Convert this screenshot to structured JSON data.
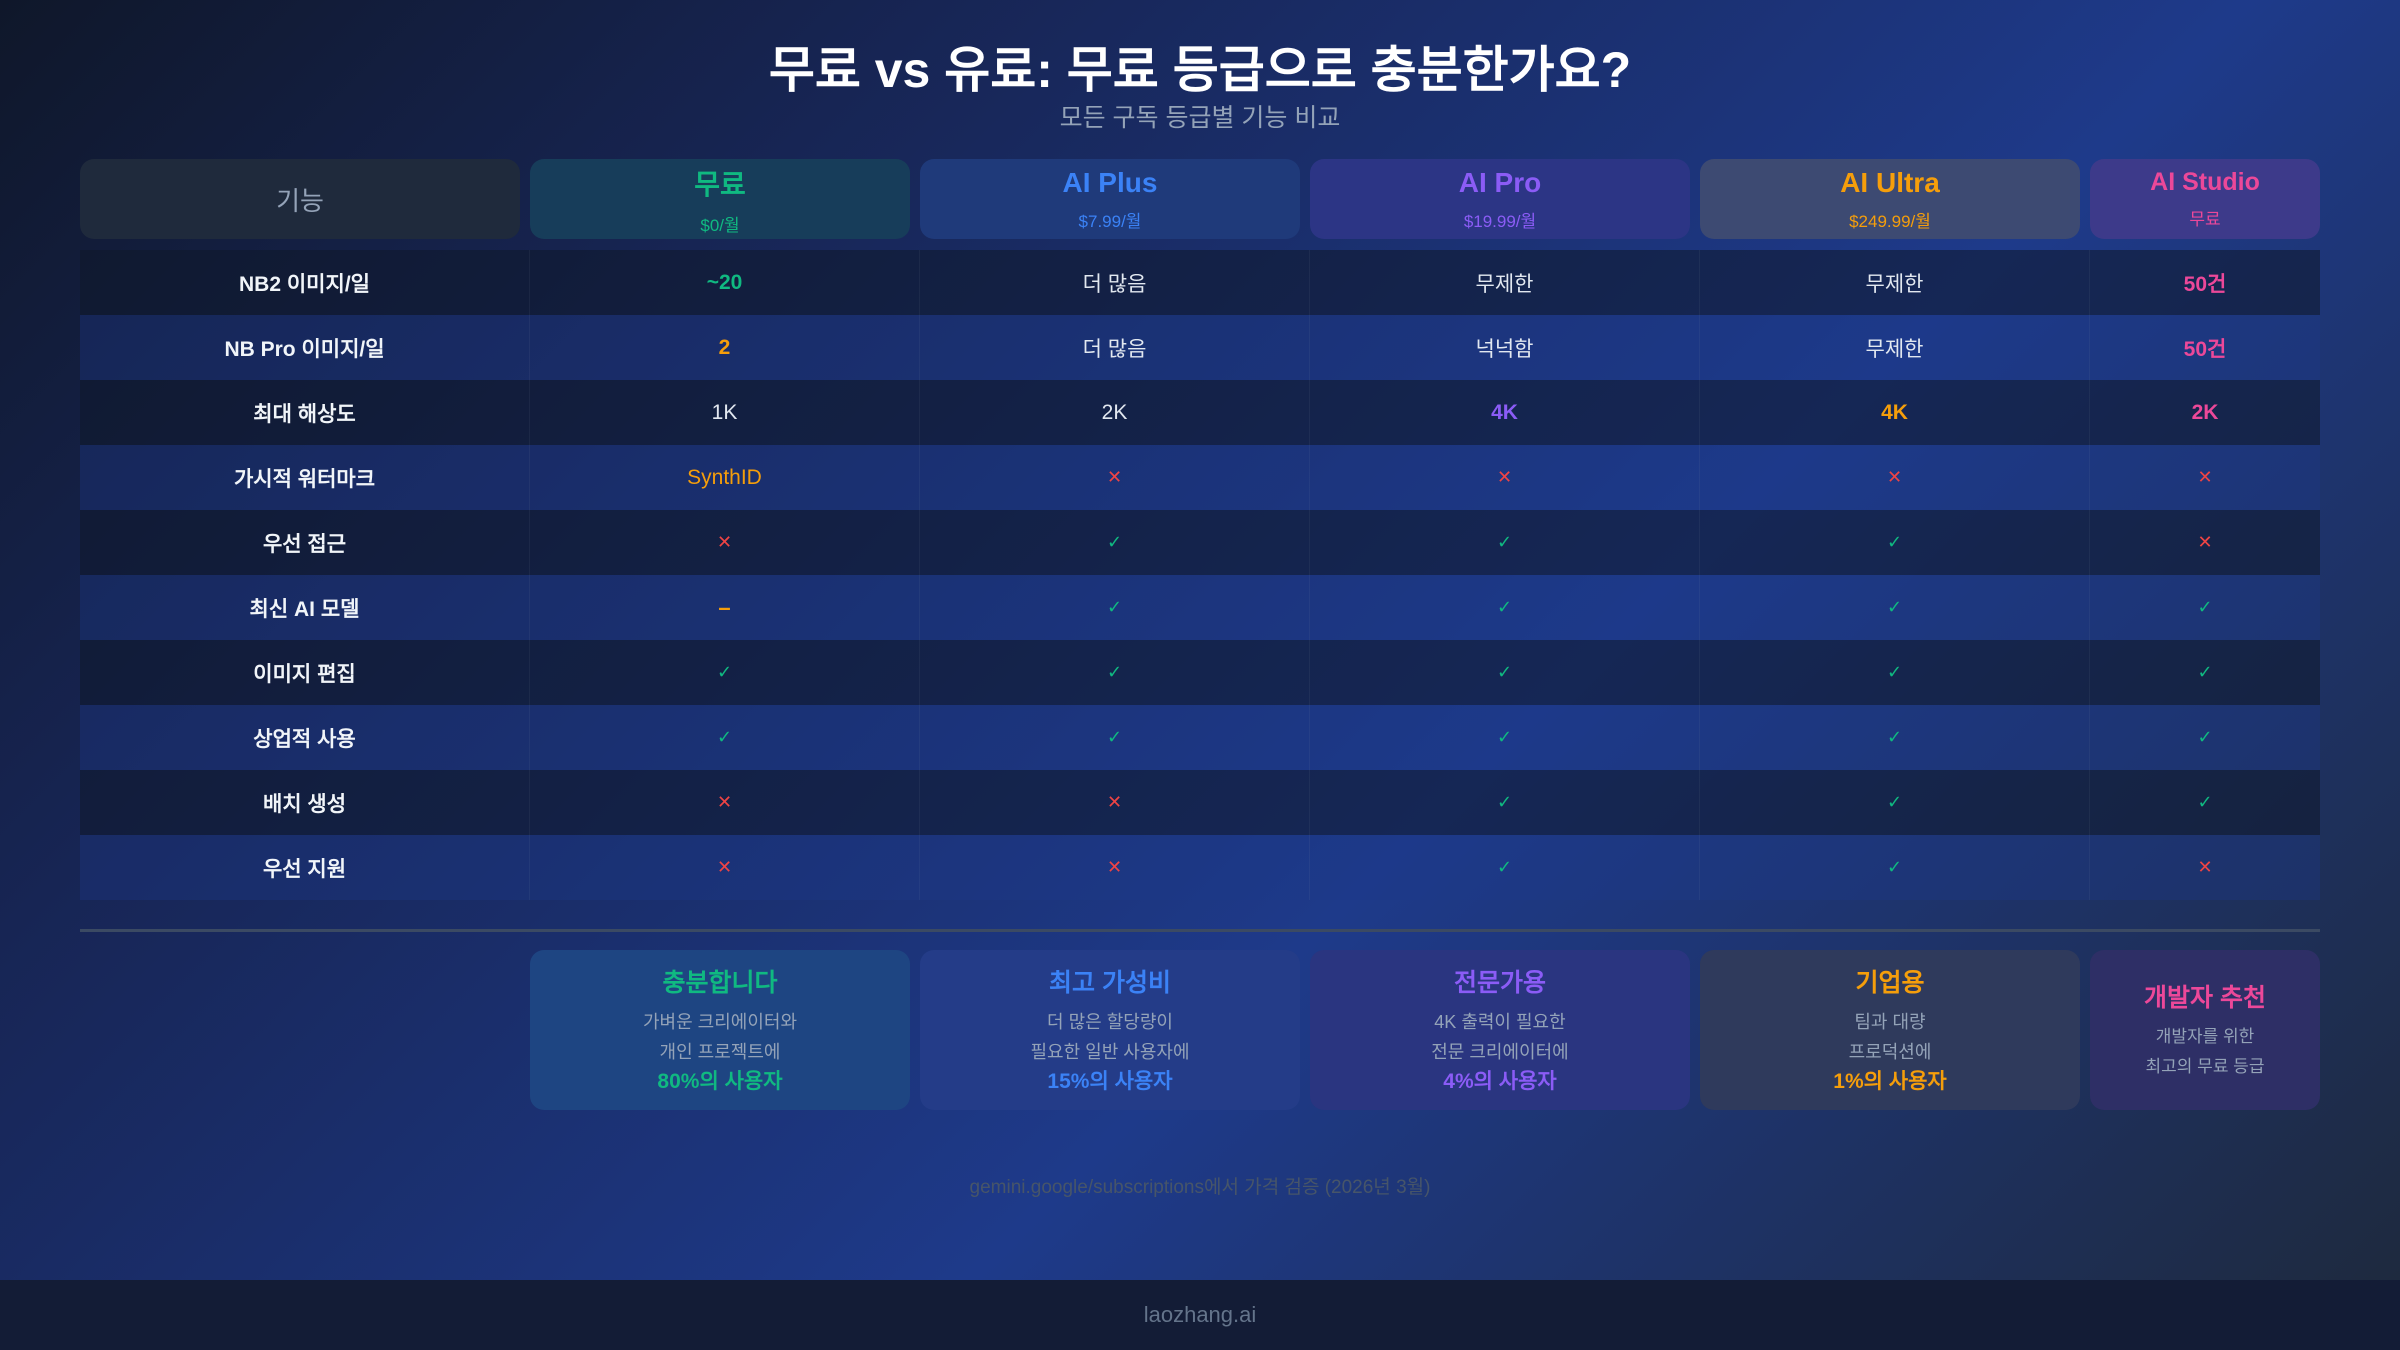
{
  "header": {
    "title": "무료 vs 유료: 무료 등급으로 충분한가요?",
    "subtitle": "모든 구독 등급별 기능 비교"
  },
  "colors": {
    "free": "#10b981",
    "plus": "#3b82f6",
    "pro": "#8b5cf6",
    "ultra": "#f59e0b",
    "studio": "#ec4899",
    "check": "#10b981",
    "cross": "#ef4444"
  },
  "table": {
    "feature_header": "기능",
    "tiers": [
      {
        "name": "무료",
        "price": "$0/월",
        "color": "#10b981",
        "bg": "#173d5a"
      },
      {
        "name": "AI Plus",
        "price": "$7.99/월",
        "color": "#3b82f6",
        "bg": "#1f3a7a"
      },
      {
        "name": "AI Pro",
        "price": "$19.99/월",
        "color": "#8b5cf6",
        "bg": "#2c3585"
      },
      {
        "name": "AI Ultra",
        "price": "$249.99/월",
        "color": "#f59e0b",
        "bg": "#3d4a72"
      },
      {
        "name": "AI Studio",
        "price": "무료",
        "color": "#ec4899",
        "bg": "#3d3a8a"
      }
    ],
    "rows": [
      {
        "feature": "NB2 이미지/일",
        "cells": [
          {
            "text": "~20",
            "kind": "text",
            "color": "#10b981",
            "bold": true
          },
          {
            "text": "더 많음",
            "kind": "text"
          },
          {
            "text": "무제한",
            "kind": "text"
          },
          {
            "text": "무제한",
            "kind": "text"
          },
          {
            "text": "50건",
            "kind": "text",
            "color": "#ec4899",
            "bold": true
          }
        ]
      },
      {
        "feature": "NB Pro 이미지/일",
        "cells": [
          {
            "text": "2",
            "kind": "text",
            "color": "#f59e0b",
            "bold": true
          },
          {
            "text": "더 많음",
            "kind": "text"
          },
          {
            "text": "넉넉함",
            "kind": "text"
          },
          {
            "text": "무제한",
            "kind": "text"
          },
          {
            "text": "50건",
            "kind": "text",
            "color": "#ec4899",
            "bold": true
          }
        ]
      },
      {
        "feature": "최대 해상도",
        "cells": [
          {
            "text": "1K",
            "kind": "text"
          },
          {
            "text": "2K",
            "kind": "text"
          },
          {
            "text": "4K",
            "kind": "text",
            "color": "#8b5cf6",
            "bold": true
          },
          {
            "text": "4K",
            "kind": "text",
            "color": "#f59e0b",
            "bold": true
          },
          {
            "text": "2K",
            "kind": "text",
            "color": "#ec4899",
            "bold": true
          }
        ]
      },
      {
        "feature": "가시적 워터마크",
        "cells": [
          {
            "text": "SynthID",
            "kind": "text",
            "color": "#f59e0b"
          },
          {
            "text": "✕",
            "kind": "cross"
          },
          {
            "text": "✕",
            "kind": "cross"
          },
          {
            "text": "✕",
            "kind": "cross"
          },
          {
            "text": "✕",
            "kind": "cross"
          }
        ]
      },
      {
        "feature": "우선 접근",
        "cells": [
          {
            "text": "✕",
            "kind": "cross"
          },
          {
            "text": "✓",
            "kind": "check"
          },
          {
            "text": "✓",
            "kind": "check"
          },
          {
            "text": "✓",
            "kind": "check"
          },
          {
            "text": "✕",
            "kind": "cross"
          }
        ]
      },
      {
        "feature": "최신 AI 모델",
        "cells": [
          {
            "text": "–",
            "kind": "dash"
          },
          {
            "text": "✓",
            "kind": "check"
          },
          {
            "text": "✓",
            "kind": "check"
          },
          {
            "text": "✓",
            "kind": "check"
          },
          {
            "text": "✓",
            "kind": "check"
          }
        ]
      },
      {
        "feature": "이미지 편집",
        "cells": [
          {
            "text": "✓",
            "kind": "check"
          },
          {
            "text": "✓",
            "kind": "check"
          },
          {
            "text": "✓",
            "kind": "check"
          },
          {
            "text": "✓",
            "kind": "check"
          },
          {
            "text": "✓",
            "kind": "check"
          }
        ]
      },
      {
        "feature": "상업적 사용",
        "cells": [
          {
            "text": "✓",
            "kind": "check"
          },
          {
            "text": "✓",
            "kind": "check"
          },
          {
            "text": "✓",
            "kind": "check"
          },
          {
            "text": "✓",
            "kind": "check"
          },
          {
            "text": "✓",
            "kind": "check"
          }
        ]
      },
      {
        "feature": "배치 생성",
        "cells": [
          {
            "text": "✕",
            "kind": "cross"
          },
          {
            "text": "✕",
            "kind": "cross"
          },
          {
            "text": "✓",
            "kind": "check"
          },
          {
            "text": "✓",
            "kind": "check"
          },
          {
            "text": "✓",
            "kind": "check"
          }
        ]
      },
      {
        "feature": "우선 지원",
        "cells": [
          {
            "text": "✕",
            "kind": "cross"
          },
          {
            "text": "✕",
            "kind": "cross"
          },
          {
            "text": "✓",
            "kind": "check"
          },
          {
            "text": "✓",
            "kind": "check"
          },
          {
            "text": "✕",
            "kind": "cross"
          }
        ]
      }
    ]
  },
  "cards": [
    {
      "title": "충분합니다",
      "lines": [
        "가벼운 크리에이터와",
        "개인 프로젝트에"
      ],
      "pct": "80%의 사용자",
      "color": "#10b981",
      "bg": "#1e4582"
    },
    {
      "title": "최고 가성비",
      "lines": [
        "더 많은 할당량이",
        "필요한 일반 사용자에"
      ],
      "pct": "15%의 사용자",
      "color": "#3b82f6",
      "bg": "#243c88"
    },
    {
      "title": "전문가용",
      "lines": [
        "4K 출력이 필요한",
        "전문 크리에이터에"
      ],
      "pct": "4%의 사용자",
      "color": "#8b5cf6",
      "bg": "#2a3580"
    },
    {
      "title": "기업용",
      "lines": [
        "팀과 대량",
        "프로덕션에"
      ],
      "pct": "1%의 사용자",
      "color": "#f59e0b",
      "bg": "#2f3a5c"
    },
    {
      "title": "개발자 추천",
      "lines": [
        "개발자를 위한",
        "최고의 무료 등급"
      ],
      "pct": "",
      "color": "#ec4899",
      "bg": "#2e2f66"
    }
  ],
  "note": "gemini.google/subscriptions에서 가격 검증 (2026년 3월)",
  "footer": "laozhang.ai"
}
